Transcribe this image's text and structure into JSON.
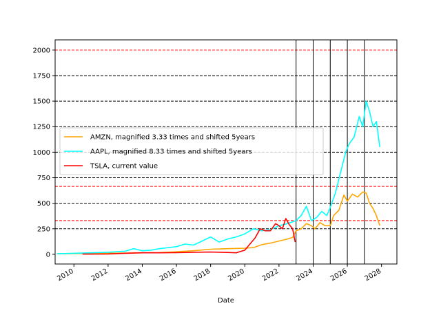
{
  "chart_data": {
    "type": "line",
    "title": "",
    "xlabel": "Date",
    "ylabel": "",
    "xlim": [
      2008.9,
      2028.9
    ],
    "ylim": [
      -95,
      2100
    ],
    "x_ticks": [
      2010,
      2012,
      2014,
      2016,
      2018,
      2020,
      2022,
      2024,
      2026,
      2028
    ],
    "x_tick_labels": [
      "2010",
      "2012",
      "2014",
      "2016",
      "2018",
      "2020",
      "2022",
      "2024",
      "2026",
      "2028"
    ],
    "y_ticks": [
      0,
      250,
      500,
      750,
      1000,
      1250,
      1500,
      1750,
      2000
    ],
    "y_tick_labels": [
      "0",
      "250",
      "500",
      "750",
      "1000",
      "1250",
      "1500",
      "1750",
      "2000"
    ],
    "grid": false,
    "legend_position": "center-left",
    "horizontal_lines": [
      {
        "y": 250,
        "color": "#000000",
        "style": "dashed"
      },
      {
        "y": 330,
        "color": "#ff0000",
        "style": "dashed"
      },
      {
        "y": 500,
        "color": "#000000",
        "style": "dashed"
      },
      {
        "y": 665,
        "color": "#ff0000",
        "style": "dashed"
      },
      {
        "y": 750,
        "color": "#000000",
        "style": "dashed"
      },
      {
        "y": 1000,
        "color": "#000000",
        "style": "dashed"
      },
      {
        "y": 1250,
        "color": "#000000",
        "style": "dashed"
      },
      {
        "y": 1500,
        "color": "#000000",
        "style": "dashed"
      },
      {
        "y": 1750,
        "color": "#000000",
        "style": "dashed"
      },
      {
        "y": 2000,
        "color": "#ff0000",
        "style": "dashed"
      }
    ],
    "vertical_lines": [
      {
        "x": 2023.0,
        "color": "#000000"
      },
      {
        "x": 2024.0,
        "color": "#000000"
      },
      {
        "x": 2025.0,
        "color": "#000000"
      },
      {
        "x": 2026.0,
        "color": "#000000"
      },
      {
        "x": 2027.0,
        "color": "#000000"
      }
    ],
    "series": [
      {
        "name": "AMZN, magnified 3.33 times and shifted 5years",
        "color": "#ffa500",
        "x": [
          2009.0,
          2010.0,
          2011.0,
          2012.0,
          2013.0,
          2014.0,
          2015.0,
          2016.0,
          2017.0,
          2018.0,
          2019.0,
          2020.0,
          2020.5,
          2021.0,
          2021.5,
          2022.0,
          2022.5,
          2022.8,
          2023.0,
          2023.3,
          2023.6,
          2023.9,
          2024.1,
          2024.4,
          2024.7,
          2025.0,
          2025.2,
          2025.5,
          2025.8,
          2026.0,
          2026.3,
          2026.6,
          2026.9,
          2027.1,
          2027.3,
          2027.5,
          2027.7,
          2027.9
        ],
        "y": [
          5,
          7,
          8,
          10,
          12,
          15,
          17,
          25,
          35,
          50,
          55,
          60,
          65,
          95,
          110,
          130,
          150,
          165,
          230,
          250,
          300,
          280,
          250,
          310,
          280,
          280,
          380,
          430,
          580,
          520,
          590,
          560,
          610,
          600,
          500,
          450,
          380,
          280
        ]
      },
      {
        "name": "AAPL, magnified 8.33 times and shifted 5years",
        "color": "#00ffff",
        "x": [
          2009.0,
          2010.0,
          2011.0,
          2012.0,
          2013.0,
          2013.5,
          2014.0,
          2014.5,
          2015.0,
          2016.0,
          2016.5,
          2017.0,
          2017.5,
          2018.0,
          2018.5,
          2019.0,
          2019.5,
          2020.0,
          2020.5,
          2021.0,
          2021.5,
          2022.0,
          2022.5,
          2023.0,
          2023.3,
          2023.6,
          2023.9,
          2024.2,
          2024.5,
          2024.8,
          2025.0,
          2025.3,
          2025.6,
          2025.9,
          2026.1,
          2026.4,
          2026.7,
          2026.9,
          2027.1,
          2027.3,
          2027.5,
          2027.7,
          2027.9
        ],
        "y": [
          5,
          10,
          15,
          20,
          30,
          55,
          35,
          40,
          55,
          75,
          100,
          90,
          130,
          170,
          120,
          150,
          170,
          200,
          250,
          230,
          240,
          280,
          300,
          330,
          380,
          470,
          330,
          360,
          420,
          380,
          460,
          600,
          800,
          1000,
          1080,
          1150,
          1350,
          1250,
          1500,
          1400,
          1250,
          1300,
          1050
        ]
      },
      {
        "name": "TSLA, current value",
        "color": "#ff0000",
        "x": [
          2010.5,
          2011.0,
          2012.0,
          2013.0,
          2013.5,
          2014.0,
          2015.0,
          2016.0,
          2017.0,
          2018.0,
          2019.0,
          2019.5,
          2020.0,
          2020.3,
          2020.6,
          2020.9,
          2021.2,
          2021.5,
          2021.8,
          2022.0,
          2022.2,
          2022.4,
          2022.6,
          2022.8,
          2022.95
        ],
        "y": [
          2,
          2,
          3,
          10,
          12,
          15,
          15,
          16,
          20,
          22,
          18,
          15,
          40,
          100,
          160,
          250,
          230,
          230,
          300,
          280,
          250,
          350,
          290,
          250,
          120
        ]
      }
    ]
  }
}
